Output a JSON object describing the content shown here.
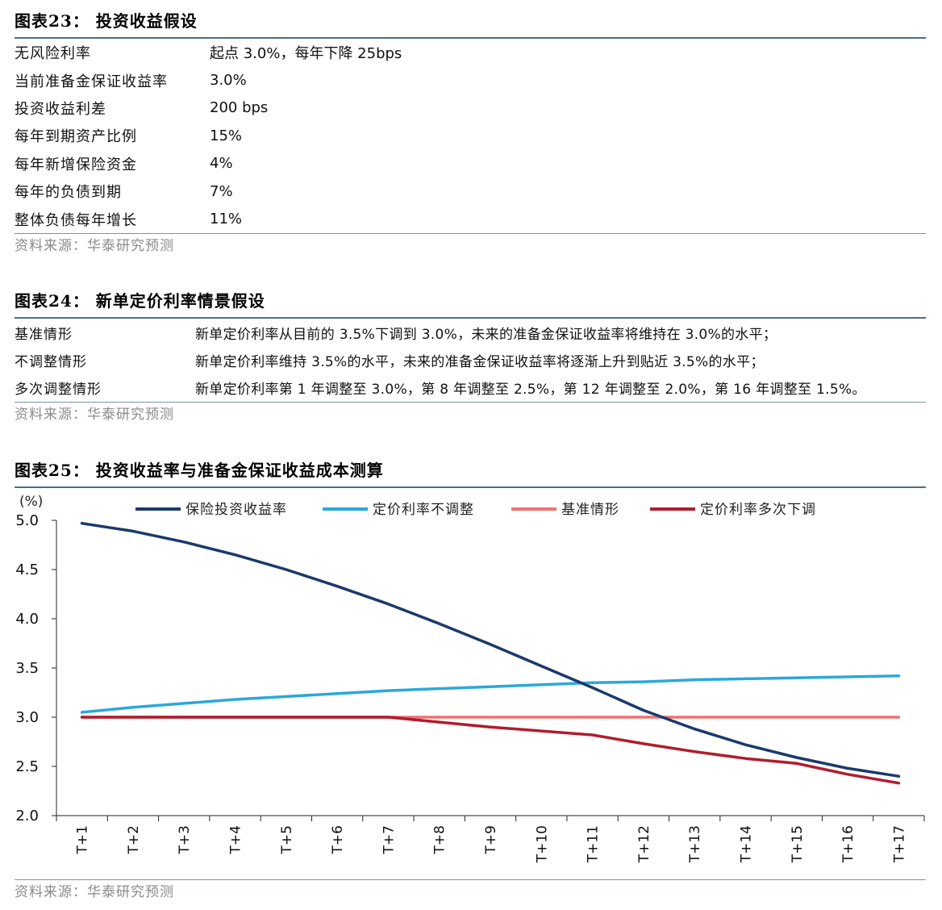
{
  "table23": {
    "title": "图表23：  投资收益假设",
    "rows": [
      {
        "label": "无风险利率",
        "value": "起点 3.0%，每年下降 25bps"
      },
      {
        "label": "当前准备金保证收益率",
        "value": "3.0%"
      },
      {
        "label": "投资收益利差",
        "value": "200 bps"
      },
      {
        "label": "每年到期资产比例",
        "value": "15%"
      },
      {
        "label": "每年新增保险资金",
        "value": "4%"
      },
      {
        "label": "每年的负债到期",
        "value": "7%"
      },
      {
        "label": "整体负债每年增长",
        "value": "11%"
      }
    ],
    "source": "资料来源：华泰研究预测"
  },
  "table24": {
    "title": "图表24：  新单定价利率情景假设",
    "rows": [
      {
        "label": "基准情形",
        "value": "新单定价利率从目前的 3.5%下调到 3.0%，未来的准备金保证收益率将维持在 3.0%的水平；"
      },
      {
        "label": "不调整情形",
        "value": "新单定价利率维持 3.5%的水平，未来的准备金保证收益率将逐渐上升到贴近 3.5%的水平；"
      },
      {
        "label": "多次调整情形",
        "value": "新单定价利率第 1 年调整至 3.0%，第 8 年调整至 2.5%，第 12 年调整至 2.0%，第 16 年调整至 1.5%。"
      }
    ],
    "source": "资料来源：华泰研究预测"
  },
  "figure25": {
    "title": "图表25：  投资收益率与准备金保证收益成本测算",
    "source": "资料来源：华泰研究预测"
  },
  "chart_data": {
    "type": "line",
    "ylabel": "(%)",
    "ylim": [
      2.0,
      5.0
    ],
    "yticks": [
      "5.0",
      "4.5",
      "4.0",
      "3.5",
      "3.0",
      "2.5",
      "2.0"
    ],
    "grid": false,
    "legend_position": "top",
    "categories": [
      "T+1",
      "T+2",
      "T+3",
      "T+4",
      "T+5",
      "T+6",
      "T+7",
      "T+8",
      "T+9",
      "T+10",
      "T+11",
      "T+12",
      "T+13",
      "T+14",
      "T+15",
      "T+16",
      "T+17"
    ],
    "series": [
      {
        "name": "保险投资收益率",
        "color": "#1b3a6b",
        "values": [
          4.97,
          4.89,
          4.78,
          4.65,
          4.5,
          4.33,
          4.15,
          3.95,
          3.74,
          3.52,
          3.3,
          3.07,
          2.88,
          2.72,
          2.59,
          2.48,
          2.4
        ]
      },
      {
        "name": "定价利率不调整",
        "color": "#2aa8dc",
        "values": [
          3.05,
          3.1,
          3.14,
          3.18,
          3.21,
          3.24,
          3.27,
          3.29,
          3.31,
          3.33,
          3.35,
          3.36,
          3.38,
          3.39,
          3.4,
          3.41,
          3.42
        ]
      },
      {
        "name": "基准情形",
        "color": "#ee7272",
        "values": [
          3.0,
          3.0,
          3.0,
          3.0,
          3.0,
          3.0,
          3.0,
          3.0,
          3.0,
          3.0,
          3.0,
          3.0,
          3.0,
          3.0,
          3.0,
          3.0,
          3.0
        ]
      },
      {
        "name": "定价利率多次下调",
        "color": "#b01c2e",
        "values": [
          3.0,
          3.0,
          3.0,
          3.0,
          3.0,
          3.0,
          3.0,
          2.95,
          2.9,
          2.86,
          2.82,
          2.73,
          2.65,
          2.58,
          2.53,
          2.42,
          2.33
        ]
      }
    ]
  }
}
